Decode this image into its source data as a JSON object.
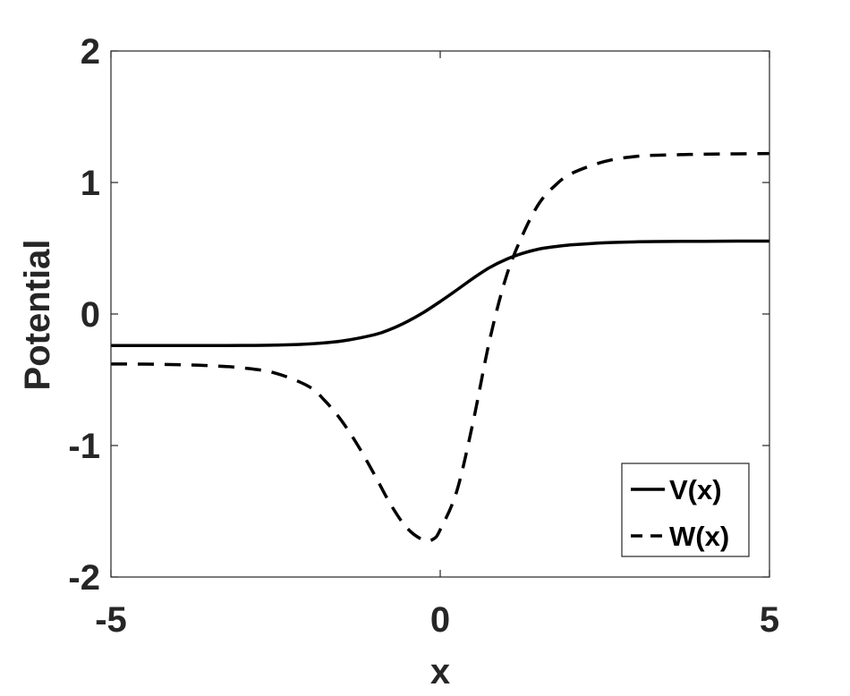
{
  "chart_data": {
    "type": "line",
    "xlabel": "x",
    "ylabel": "Potential",
    "xlim": [
      -5,
      5
    ],
    "ylim": [
      -2,
      2
    ],
    "xticks": [
      -5,
      0,
      5
    ],
    "yticks": [
      -2,
      -1,
      0,
      1,
      2
    ],
    "grid": false,
    "legend_position": "bottom-right",
    "series": [
      {
        "name": "V(x)",
        "style": "solid",
        "color": "#000000",
        "x": [
          -5,
          -4.5,
          -4,
          -3.5,
          -3,
          -2.5,
          -2,
          -1.5,
          -1,
          -0.75,
          -0.5,
          -0.25,
          0,
          0.25,
          0.5,
          0.75,
          1,
          1.25,
          1.5,
          1.75,
          2,
          2.5,
          3,
          3.5,
          4,
          4.5,
          5
        ],
        "y": [
          -0.24,
          -0.24,
          -0.24,
          -0.24,
          -0.239,
          -0.236,
          -0.228,
          -0.206,
          -0.158,
          -0.115,
          -0.057,
          0.013,
          0.095,
          0.182,
          0.272,
          0.353,
          0.415,
          0.461,
          0.494,
          0.513,
          0.526,
          0.542,
          0.549,
          0.552,
          0.553,
          0.554,
          0.554
        ]
      },
      {
        "name": "W(x)",
        "style": "dashed",
        "color": "#000000",
        "x": [
          -5,
          -4.5,
          -4,
          -3.5,
          -3,
          -2.5,
          -2,
          -1.75,
          -1.5,
          -1.25,
          -1,
          -0.75,
          -0.5,
          -0.25,
          -0.1,
          0,
          0.25,
          0.5,
          0.75,
          1,
          1.25,
          1.5,
          1.75,
          2,
          2.5,
          3,
          3.5,
          4,
          4.5,
          5
        ],
        "y": [
          -0.38,
          -0.381,
          -0.385,
          -0.393,
          -0.41,
          -0.45,
          -0.55,
          -0.66,
          -0.81,
          -1.0,
          -1.22,
          -1.45,
          -1.63,
          -1.72,
          -1.71,
          -1.64,
          -1.35,
          -0.82,
          -0.2,
          0.28,
          0.6,
          0.84,
          0.98,
          1.07,
          1.16,
          1.2,
          1.21,
          1.215,
          1.218,
          1.22
        ]
      }
    ]
  }
}
